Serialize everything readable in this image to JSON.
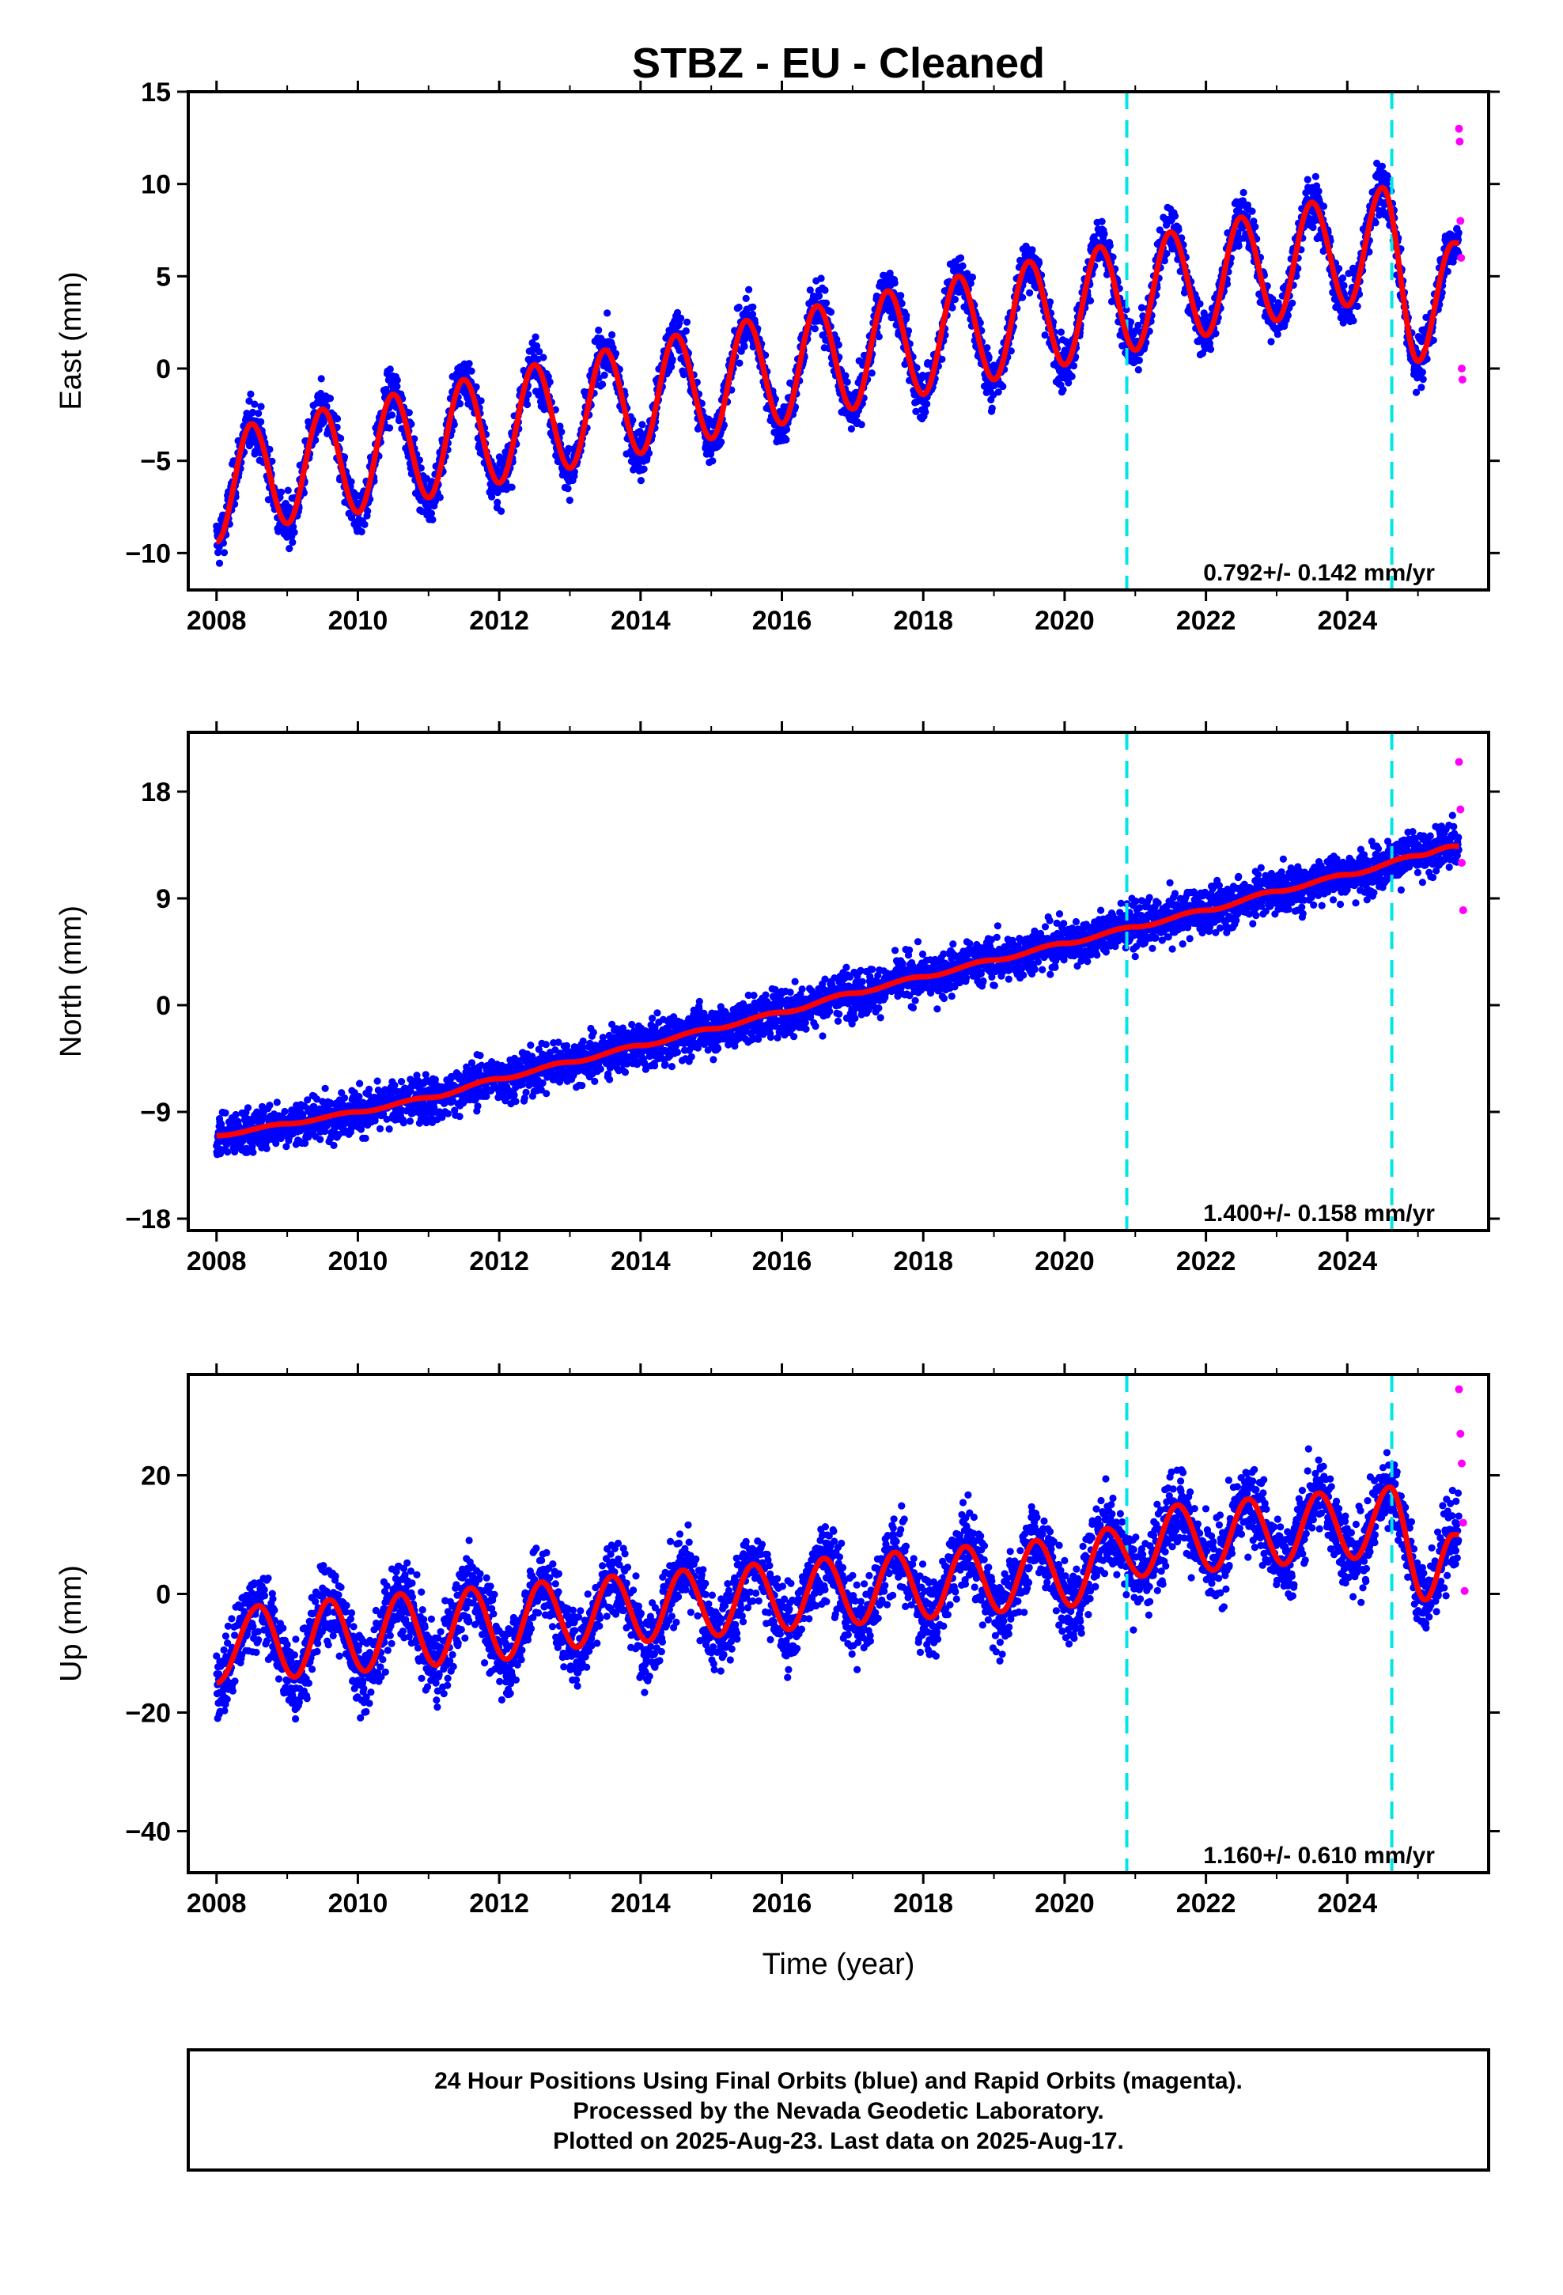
{
  "figure": {
    "title": "STBZ  - EU - Cleaned",
    "xlabel": "Time (year)",
    "footer": [
      "24 Hour Positions Using Final Orbits (blue) and Rapid Orbits (magenta).",
      "Processed by the Nevada Geodetic Laboratory.",
      "Plotted on 2025-Aug-23. Last data on 2025-Aug-17."
    ],
    "colors": {
      "final_orbits": "#0000ff",
      "rapid_orbits": "#ff00ff",
      "model_fit": "#ff0000",
      "equipment_change": "#00e5e5"
    }
  },
  "chart_data": [
    {
      "type": "scatter",
      "panel": "east",
      "ylabel": "East (mm)",
      "xlim": [
        2007.6,
        2026.0
      ],
      "ylim": [
        -12,
        15
      ],
      "xticks": [
        2008,
        2010,
        2012,
        2014,
        2016,
        2018,
        2020,
        2022,
        2024
      ],
      "yticks": [
        -10,
        -5,
        0,
        5,
        10,
        15
      ],
      "ytick_labels": [
        "−10",
        "−5",
        "0",
        "5",
        "10",
        "15"
      ],
      "rate_label": "0.792+/- 0.142 mm/yr",
      "vertical_markers": [
        2020.88,
        2024.63
      ],
      "series": [
        {
          "role": "final_orbits",
          "x": [
            2008.0,
            2008.5,
            2009.0,
            2009.5,
            2010.0,
            2010.5,
            2011.0,
            2011.5,
            2012.0,
            2012.5,
            2013.0,
            2013.5,
            2014.0,
            2014.5,
            2015.0,
            2015.5,
            2016.0,
            2016.5,
            2017.0,
            2017.5,
            2018.0,
            2018.5,
            2019.0,
            2019.5,
            2020.0,
            2020.5,
            2021.0,
            2021.5,
            2022.0,
            2022.5,
            2023.0,
            2023.5,
            2024.0,
            2024.5,
            2025.0,
            2025.5
          ],
          "y": [
            -9.4,
            -3.0,
            -8.4,
            -2.2,
            -7.8,
            -1.4,
            -7.0,
            -0.6,
            -6.2,
            0.2,
            -5.4,
            1.0,
            -4.6,
            1.8,
            -3.8,
            2.6,
            -3.0,
            3.4,
            -2.2,
            4.2,
            -1.4,
            5.0,
            -0.6,
            5.8,
            0.2,
            6.6,
            1.0,
            7.4,
            1.8,
            8.2,
            2.6,
            9.0,
            3.4,
            9.8,
            0.4,
            6.8
          ]
        },
        {
          "role": "rapid_orbits",
          "x": [
            2025.58,
            2025.59,
            2025.6,
            2025.61,
            2025.62,
            2025.63
          ],
          "y": [
            13.0,
            12.3,
            8.0,
            6.0,
            0.0,
            -0.6
          ]
        }
      ]
    },
    {
      "type": "scatter",
      "panel": "north",
      "ylabel": "North (mm)",
      "xlim": [
        2007.6,
        2026.0
      ],
      "ylim": [
        -19,
        23
      ],
      "xticks": [
        2008,
        2010,
        2012,
        2014,
        2016,
        2018,
        2020,
        2022,
        2024
      ],
      "yticks": [
        -18,
        -9,
        0,
        9,
        18
      ],
      "ytick_labels": [
        "−18",
        "−9",
        "0",
        "9",
        "18"
      ],
      "rate_label": "1.400+/- 0.158 mm/yr",
      "vertical_markers": [
        2020.88,
        2024.63
      ],
      "series": [
        {
          "role": "final_orbits",
          "x": [
            2008.0,
            2009.0,
            2010.0,
            2011.0,
            2012.0,
            2013.0,
            2014.0,
            2015.0,
            2016.0,
            2017.0,
            2018.0,
            2019.0,
            2020.0,
            2021.0,
            2022.0,
            2023.0,
            2024.0,
            2025.0,
            2025.5
          ],
          "y": [
            -11.0,
            -10.0,
            -9.0,
            -7.8,
            -6.2,
            -4.8,
            -3.4,
            -2.0,
            -0.6,
            1.0,
            2.4,
            3.8,
            5.2,
            6.6,
            8.0,
            9.6,
            11.0,
            12.6,
            13.4
          ]
        },
        {
          "role": "rapid_orbits",
          "x": [
            2025.58,
            2025.6,
            2025.62,
            2025.64
          ],
          "y": [
            20.5,
            16.5,
            12.0,
            8.0
          ]
        }
      ]
    },
    {
      "type": "scatter",
      "panel": "up",
      "ylabel": "Up (mm)",
      "xlim": [
        2007.6,
        2026.0
      ],
      "ylim": [
        -47,
        37
      ],
      "xticks": [
        2008,
        2010,
        2012,
        2014,
        2016,
        2018,
        2020,
        2022,
        2024
      ],
      "yticks": [
        -40,
        -20,
        0,
        20
      ],
      "ytick_labels": [
        "−40",
        "−20",
        "0",
        "20"
      ],
      "rate_label": "1.160+/- 0.610 mm/yr",
      "vertical_markers": [
        2020.88,
        2024.63
      ],
      "series": [
        {
          "role": "final_orbits",
          "x": [
            2008.0,
            2008.6,
            2009.1,
            2009.6,
            2010.1,
            2010.6,
            2011.1,
            2011.6,
            2012.1,
            2012.6,
            2013.1,
            2013.6,
            2014.1,
            2014.6,
            2015.1,
            2015.6,
            2016.1,
            2016.6,
            2017.1,
            2017.6,
            2018.1,
            2018.6,
            2019.1,
            2019.6,
            2020.1,
            2020.6,
            2021.1,
            2021.6,
            2022.1,
            2022.6,
            2023.1,
            2023.6,
            2024.1,
            2024.6,
            2025.1,
            2025.5
          ],
          "y": [
            -15,
            -2,
            -14,
            -1,
            -13,
            0,
            -12,
            1,
            -11,
            2,
            -9,
            3,
            -8,
            4,
            -7,
            5,
            -6,
            6,
            -5,
            7,
            -4,
            8,
            -3,
            9,
            -2,
            11,
            3,
            15,
            4,
            16,
            5,
            17,
            6,
            18,
            -1,
            10
          ]
        },
        {
          "role": "rapid_orbits",
          "x": [
            2025.58,
            2025.6,
            2025.62,
            2025.64,
            2025.66
          ],
          "y": [
            34.5,
            27.0,
            22.0,
            12.0,
            0.5
          ]
        }
      ]
    }
  ]
}
